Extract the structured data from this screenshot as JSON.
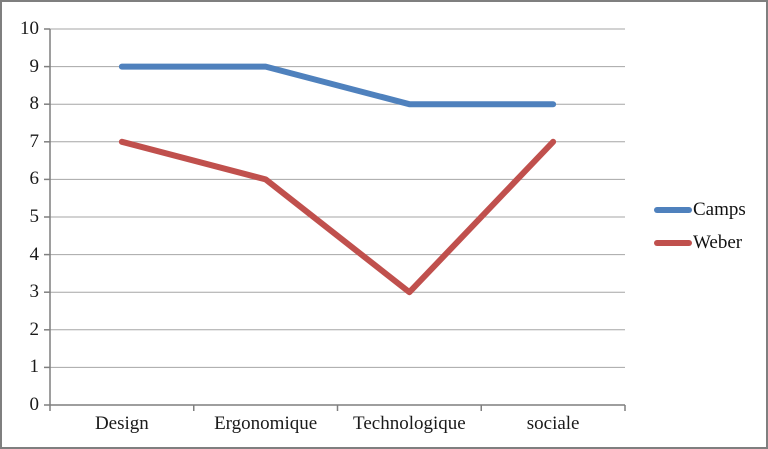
{
  "chart_data": {
    "type": "line",
    "title": "",
    "xlabel": "",
    "ylabel": "",
    "categories": [
      "Design",
      "Ergonomique",
      "Technologique",
      "sociale"
    ],
    "series": [
      {
        "name": "Camps",
        "values": [
          9,
          9,
          8,
          8
        ],
        "color": "#4f81bd"
      },
      {
        "name": "Weber",
        "values": [
          7,
          6,
          3,
          7
        ],
        "color": "#c0504d"
      }
    ],
    "ylim": [
      0,
      10
    ],
    "yticks": [
      0,
      1,
      2,
      3,
      4,
      5,
      6,
      7,
      8,
      9,
      10
    ],
    "grid": "horizontal",
    "legend_position": "right",
    "legend": [
      "Camps",
      "Weber"
    ]
  },
  "colors": {
    "camps_line": "#4f81bd",
    "weber_line": "#c0504d",
    "gridline": "#a6a6a6",
    "axis": "#7f7f7f",
    "frame_border": "#7f7f7f",
    "background": "#ffffff",
    "label_text": "#1a1a1a"
  }
}
